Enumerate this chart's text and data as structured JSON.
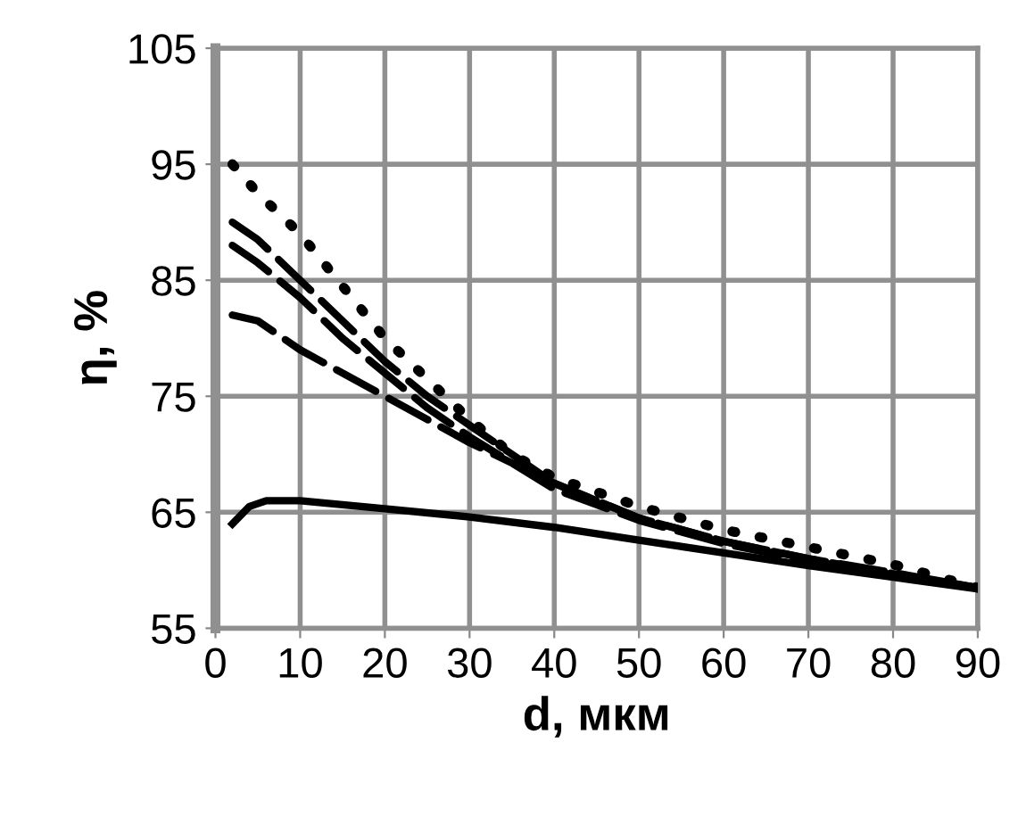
{
  "chart_data": {
    "type": "line",
    "xlabel": "d, мкм",
    "ylabel": "η, %",
    "xlim": [
      0,
      90
    ],
    "xticks": [
      0,
      10,
      20,
      30,
      40,
      50,
      60,
      70,
      80,
      90
    ],
    "ylim": [
      55,
      105
    ],
    "yticks": [
      55,
      65,
      75,
      85,
      95,
      105
    ],
    "grid": true,
    "marker": "none",
    "series": [
      {
        "color": "#000000",
        "line_style": "dotted",
        "x": [
          2,
          5,
          10,
          15,
          20,
          25,
          30,
          35,
          40,
          50,
          60,
          70,
          80,
          90
        ],
        "values": [
          95,
          92.5,
          89,
          84.5,
          80,
          76.5,
          73,
          70,
          68,
          65.5,
          63.5,
          62,
          60.5,
          58.5
        ]
      },
      {
        "color": "#000000",
        "line_style": "dashed",
        "x": [
          2,
          5,
          10,
          15,
          20,
          25,
          30,
          40,
          50,
          60,
          70,
          80,
          90
        ],
        "values": [
          90,
          88.5,
          85,
          81.5,
          78,
          75,
          72.5,
          67.5,
          64.5,
          62.5,
          61,
          59.8,
          58.5
        ]
      },
      {
        "color": "#000000",
        "line_style": "dashed",
        "x": [
          2,
          5,
          10,
          15,
          20,
          25,
          30,
          40,
          50,
          60,
          70,
          80,
          90
        ],
        "values": [
          88,
          86.5,
          83.5,
          80,
          77,
          74,
          71.5,
          67,
          64.3,
          62.3,
          60.8,
          59.6,
          58.5
        ]
      },
      {
        "color": "#000000",
        "line_style": "dashed",
        "x": [
          2,
          5,
          10,
          20,
          30,
          40,
          50,
          60,
          70,
          80,
          90
        ],
        "values": [
          82,
          81.5,
          79,
          75,
          71,
          67.5,
          64.5,
          62.5,
          61,
          59.7,
          58.5
        ]
      },
      {
        "color": "#000000",
        "line_style": "solid",
        "x": [
          2,
          4,
          6,
          10,
          20,
          30,
          40,
          50,
          60,
          70,
          80,
          90
        ],
        "values": [
          64,
          65.5,
          66,
          66,
          65.3,
          64.6,
          63.7,
          62.6,
          61.5,
          60.4,
          59.4,
          58.4
        ]
      }
    ]
  }
}
